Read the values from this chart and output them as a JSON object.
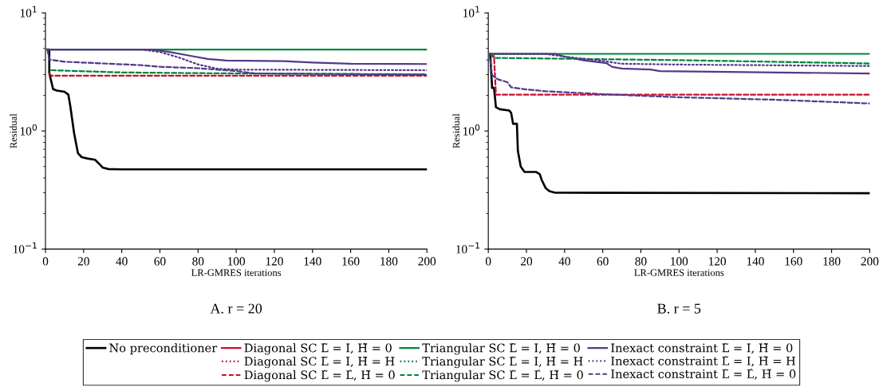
{
  "chart_data": [
    {
      "type": "line",
      "title": "A. r = 20",
      "xlabel": "LR-GMRES iterations",
      "ylabel": "Residual",
      "log": "y",
      "xlim": [
        0,
        200
      ],
      "xticks": [
        0,
        20,
        40,
        60,
        80,
        100,
        120,
        140,
        160,
        180,
        200
      ],
      "ylim": [
        0.1,
        10
      ],
      "yticks": [
        {
          "value": 0.1,
          "label": "10$^{−1}$"
        },
        {
          "value": 1,
          "label": "10$^{0}$"
        },
        {
          "value": 10,
          "label": "10$^{1}$"
        }
      ],
      "grid": false,
      "legend": "bottom",
      "series": [
        {
          "name": "No preconditioner",
          "color": "#000000",
          "line_style": "solid",
          "x": [
            1,
            2,
            2,
            4,
            6,
            10,
            12,
            13,
            15,
            17,
            19,
            22,
            26,
            28,
            30,
            33,
            40,
            200
          ],
          "values": [
            4.9,
            4.9,
            3.1,
            2.26,
            2.2,
            2.15,
            2.03,
            1.63,
            0.96,
            0.65,
            0.6,
            0.585,
            0.57,
            0.53,
            0.49,
            0.476,
            0.473,
            0.473
          ]
        },
        {
          "name": "Diagonal SC L̃ = I, H̃ = 0",
          "color": "#c8102e",
          "line_style": "solid"
        },
        {
          "name": "Diagonal SC L̃ = I, H̃ = H",
          "color": "#c8102e",
          "line_style": "dotted"
        },
        {
          "name": "Diagonal SC L̃ = L̂, H̃ = 0",
          "color": "#c8102e",
          "line_style": "dashed",
          "x": [
            2,
            3,
            200
          ],
          "values": [
            3.07,
            2.94,
            2.94
          ]
        },
        {
          "name": "Triangular SC L̃ = I, H̃ = 0",
          "color": "#00843d",
          "line_style": "solid",
          "x": [
            1,
            200
          ],
          "values": [
            4.9,
            4.9
          ]
        },
        {
          "name": "Triangular SC L̃ = I, H̃ = H",
          "color": "#00843d",
          "line_style": "dotted"
        },
        {
          "name": "Triangular SC L̃ = L̂, H̃ = 0",
          "color": "#00843d",
          "line_style": "dashed",
          "x": [
            3,
            40,
            100,
            200
          ],
          "values": [
            3.27,
            3.13,
            3.07,
            3.02
          ]
        },
        {
          "name": "Inexact constraint L̃ = I, H̃ = 0",
          "color": "#54388a",
          "line_style": "solid",
          "x": [
            1,
            55,
            65,
            75,
            85,
            95,
            125,
            140,
            160,
            200
          ],
          "values": [
            4.9,
            4.9,
            4.67,
            4.36,
            4.08,
            3.95,
            3.9,
            3.8,
            3.71,
            3.69
          ]
        },
        {
          "name": "Inexact constraint L̃ = I, H̃ = H",
          "color": "#54388a",
          "line_style": "dotted",
          "x": [
            1,
            50,
            60,
            70,
            80,
            90,
            100,
            200
          ],
          "values": [
            4.9,
            4.9,
            4.67,
            4.19,
            3.66,
            3.37,
            3.31,
            3.27
          ]
        },
        {
          "name": "Inexact constraint L̃ = L̂, H̃ = 0",
          "color": "#54388a",
          "line_style": "dashed",
          "x": [
            1,
            2,
            10,
            50,
            60,
            80,
            100,
            110,
            200
          ],
          "values": [
            4.9,
            4.03,
            3.86,
            3.61,
            3.5,
            3.4,
            3.22,
            3.07,
            3.0
          ]
        }
      ]
    },
    {
      "type": "line",
      "title": "B. r = 5",
      "xlabel": "LR-GMRES iterations",
      "ylabel": "Residual",
      "log": "y",
      "xlim": [
        0,
        200
      ],
      "xticks": [
        0,
        20,
        40,
        60,
        80,
        100,
        120,
        140,
        160,
        180,
        200
      ],
      "ylim": [
        0.1,
        10
      ],
      "yticks": [
        {
          "value": 0.1,
          "label": "10$^{−1}$"
        },
        {
          "value": 1,
          "label": "10$^{0}$"
        },
        {
          "value": 10,
          "label": "10$^{1}$"
        }
      ],
      "grid": false,
      "series": [
        {
          "color": "#000000",
          "line_style": "solid",
          "x": [
            1,
            2,
            3,
            4,
            6,
            11,
            12,
            13,
            15,
            15.5,
            17,
            19,
            25,
            27,
            28,
            30,
            32,
            35,
            200
          ],
          "values": [
            4.5,
            2.32,
            2.32,
            1.59,
            1.53,
            1.49,
            1.42,
            1.15,
            1.15,
            0.68,
            0.5,
            0.45,
            0.45,
            0.43,
            0.385,
            0.33,
            0.31,
            0.3,
            0.297
          ]
        },
        {
          "color": "#c8102e",
          "line_style": "dashed",
          "x": [
            1,
            3,
            4,
            200
          ],
          "values": [
            4.5,
            4.3,
            2.03,
            2.03
          ]
        },
        {
          "color": "#00843d",
          "line_style": "solid",
          "x": [
            1,
            200
          ],
          "values": [
            4.5,
            4.5
          ]
        },
        {
          "color": "#00843d",
          "line_style": "dashed",
          "x": [
            1,
            3,
            100,
            200
          ],
          "values": [
            4.5,
            4.16,
            3.98,
            3.73
          ]
        },
        {
          "color": "#54388a",
          "line_style": "solid",
          "x": [
            1,
            35,
            40,
            50,
            62,
            65,
            70,
            85,
            90,
            200
          ],
          "values": [
            4.5,
            4.5,
            4.26,
            3.96,
            3.75,
            3.49,
            3.38,
            3.32,
            3.21,
            3.07
          ]
        },
        {
          "color": "#54388a",
          "line_style": "dotted",
          "x": [
            1,
            30,
            40,
            60,
            70,
            100,
            200
          ],
          "values": [
            4.5,
            4.5,
            4.26,
            3.92,
            3.71,
            3.65,
            3.55
          ]
        },
        {
          "color": "#54388a",
          "line_style": "dashed",
          "x": [
            1,
            2,
            5,
            10,
            12,
            20,
            30,
            60,
            100,
            150,
            200
          ],
          "values": [
            4.0,
            2.97,
            2.74,
            2.59,
            2.34,
            2.25,
            2.17,
            2.05,
            1.93,
            1.84,
            1.71
          ]
        }
      ]
    }
  ]
}
